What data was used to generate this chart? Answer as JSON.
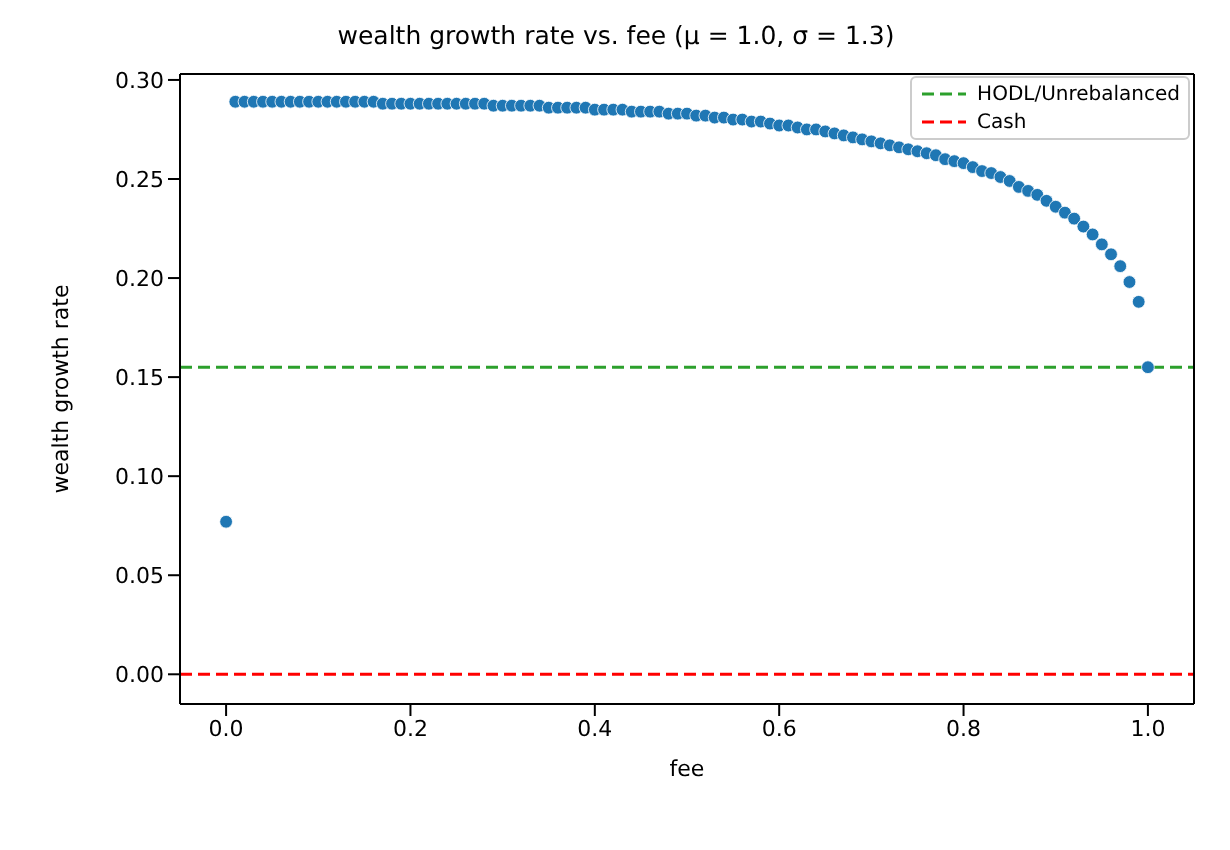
{
  "chart_data": {
    "type": "scatter",
    "title": "wealth growth rate vs. fee (μ = 1.0, σ = 1.3)",
    "xlabel": "fee",
    "ylabel": "wealth growth rate",
    "x": [
      0,
      0.01,
      0.02,
      0.03,
      0.04,
      0.05,
      0.06,
      0.07,
      0.08,
      0.09,
      0.1,
      0.11,
      0.12,
      0.13,
      0.14,
      0.15,
      0.16,
      0.17,
      0.18,
      0.19,
      0.2,
      0.21,
      0.22,
      0.23,
      0.24,
      0.25,
      0.26,
      0.27,
      0.28,
      0.29,
      0.3,
      0.31,
      0.32,
      0.33,
      0.34,
      0.35,
      0.36,
      0.37,
      0.38,
      0.39,
      0.4,
      0.41,
      0.42,
      0.43,
      0.44,
      0.45,
      0.46,
      0.47,
      0.48,
      0.49,
      0.5,
      0.51,
      0.52,
      0.53,
      0.54,
      0.55,
      0.56,
      0.57,
      0.58,
      0.59,
      0.6,
      0.61,
      0.62,
      0.63,
      0.64,
      0.65,
      0.66,
      0.67,
      0.68,
      0.69,
      0.7,
      0.71,
      0.72,
      0.73,
      0.74,
      0.75,
      0.76,
      0.77,
      0.78,
      0.79,
      0.8,
      0.81,
      0.82,
      0.83,
      0.84,
      0.85,
      0.86,
      0.87,
      0.88,
      0.89,
      0.9,
      0.91,
      0.92,
      0.93,
      0.94,
      0.95,
      0.96,
      0.97,
      0.98,
      0.99,
      1.0
    ],
    "series": [
      {
        "color": "#1f77b4",
        "values": [
          0.077,
          0.289,
          0.289,
          0.289,
          0.289,
          0.289,
          0.289,
          0.289,
          0.289,
          0.289,
          0.289,
          0.289,
          0.289,
          0.289,
          0.289,
          0.289,
          0.289,
          0.288,
          0.288,
          0.288,
          0.288,
          0.288,
          0.288,
          0.288,
          0.288,
          0.288,
          0.288,
          0.288,
          0.288,
          0.287,
          0.287,
          0.287,
          0.287,
          0.287,
          0.287,
          0.286,
          0.286,
          0.286,
          0.286,
          0.286,
          0.285,
          0.285,
          0.285,
          0.285,
          0.284,
          0.284,
          0.284,
          0.284,
          0.283,
          0.283,
          0.283,
          0.282,
          0.282,
          0.281,
          0.281,
          0.28,
          0.28,
          0.279,
          0.279,
          0.278,
          0.277,
          0.277,
          0.276,
          0.275,
          0.275,
          0.274,
          0.273,
          0.272,
          0.271,
          0.27,
          0.269,
          0.268,
          0.267,
          0.266,
          0.265,
          0.264,
          0.263,
          0.262,
          0.26,
          0.259,
          0.258,
          0.256,
          0.254,
          0.253,
          0.251,
          0.249,
          0.246,
          0.244,
          0.242,
          0.239,
          0.236,
          0.233,
          0.23,
          0.226,
          0.222,
          0.217,
          0.212,
          0.206,
          0.198,
          0.188,
          0.155
        ]
      }
    ],
    "ref_lines": [
      {
        "axis": "y",
        "value": 0.155,
        "label": "HODL/Unrebalanced",
        "color": "#2ca02c",
        "line_style": "dashed"
      },
      {
        "axis": "y",
        "value": 0,
        "label": "Cash",
        "color": "#ff0000",
        "line_style": "dashed"
      }
    ],
    "xlim": [
      -0.05,
      1.05
    ],
    "xticks": [
      {
        "value": 0,
        "label": "0.0"
      },
      {
        "value": 0.2,
        "label": "0.2"
      },
      {
        "value": 0.4,
        "label": "0.4"
      },
      {
        "value": 0.6,
        "label": "0.6"
      },
      {
        "value": 0.8,
        "label": "0.8"
      },
      {
        "value": 1,
        "label": "1.0"
      }
    ],
    "ylim": [
      -0.015,
      0.303
    ],
    "yticks": [
      {
        "value": 0,
        "label": "0.00"
      },
      {
        "value": 0.05,
        "label": "0.05"
      },
      {
        "value": 0.1,
        "label": "0.10"
      },
      {
        "value": 0.15,
        "label": "0.15"
      },
      {
        "value": 0.2,
        "label": "0.20"
      },
      {
        "value": 0.25,
        "label": "0.25"
      },
      {
        "value": 0.3,
        "label": "0.30"
      }
    ],
    "legend": "top right",
    "marker": "circle"
  }
}
